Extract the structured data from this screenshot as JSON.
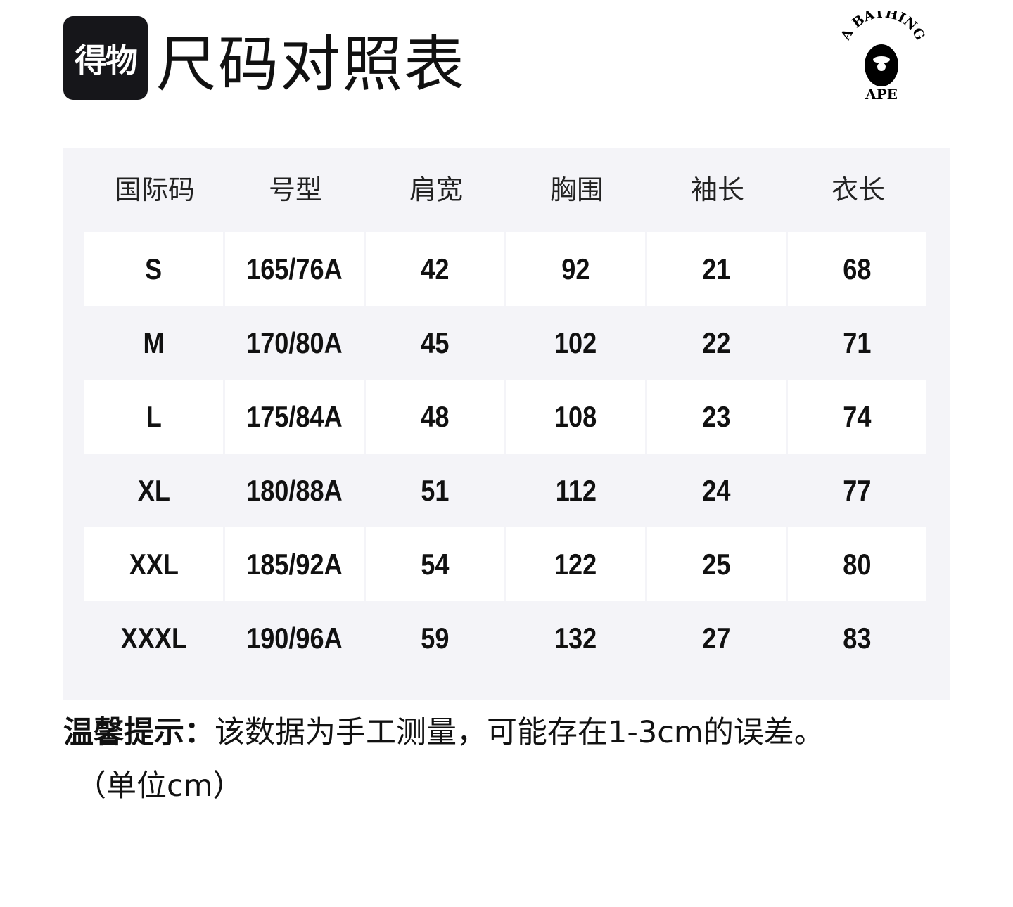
{
  "header": {
    "app_logo_text": "得物",
    "title": "尺码对照表",
    "brand_logo": {
      "top_text": "A BATHING",
      "bottom_text": "APE"
    }
  },
  "table": {
    "columns": [
      "国际码",
      "号型",
      "肩宽",
      "胸围",
      "袖长",
      "衣长"
    ],
    "rows": [
      [
        "S",
        "165/76A",
        "42",
        "92",
        "21",
        "68"
      ],
      [
        "M",
        "170/80A",
        "45",
        "102",
        "22",
        "71"
      ],
      [
        "L",
        "175/84A",
        "48",
        "108",
        "23",
        "74"
      ],
      [
        "XL",
        "180/88A",
        "51",
        "112",
        "24",
        "77"
      ],
      [
        "XXL",
        "185/92A",
        "54",
        "122",
        "25",
        "80"
      ],
      [
        "XXXL",
        "190/96A",
        "59",
        "132",
        "27",
        "83"
      ]
    ]
  },
  "note": {
    "label": "温馨提示：",
    "text": "该数据为手工测量，可能存在1-3cm的误差。",
    "unit": "（单位cm）"
  },
  "colors": {
    "panel_bg": "#f4f4f8",
    "logo_bg": "#16161a"
  }
}
